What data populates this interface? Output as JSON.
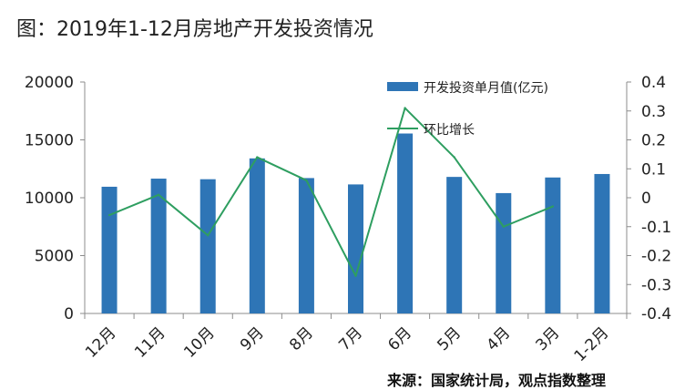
{
  "title": "图：2019年1-12月房地产开发投资情况",
  "source": "来源：国家统计局，观点指数整理",
  "colors": {
    "bar": "#2E75B6",
    "line": "#2E9E60",
    "axis": "#8C8C8C"
  },
  "chart_data": {
    "type": "bar",
    "categories": [
      "12月",
      "11月",
      "10月",
      "9月",
      "8月",
      "7月",
      "6月",
      "5月",
      "4月",
      "3月",
      "1-2月"
    ],
    "series": [
      {
        "name": "开发投资单月值(亿元)",
        "type": "bar",
        "axis": "left",
        "values": [
          10950,
          11650,
          11600,
          13400,
          11700,
          11150,
          15550,
          11800,
          10400,
          11750,
          12050
        ]
      },
      {
        "name": "环比增长",
        "type": "line",
        "axis": "right",
        "values": [
          -0.06,
          0.01,
          -0.13,
          0.14,
          0.06,
          -0.27,
          0.31,
          0.14,
          -0.1,
          -0.03,
          null
        ]
      }
    ],
    "y_left": {
      "ylim": [
        0,
        20000
      ],
      "ticks": [
        "0",
        "5000",
        "10000",
        "15000",
        "20000"
      ]
    },
    "y_right": {
      "ylim": [
        -0.4,
        0.4
      ],
      "ticks": [
        "-0.4",
        "-0.3",
        "-0.2",
        "-0.1",
        "0",
        "0.1",
        "0.2",
        "0.3",
        "0.4"
      ]
    },
    "legend": "top-right"
  }
}
